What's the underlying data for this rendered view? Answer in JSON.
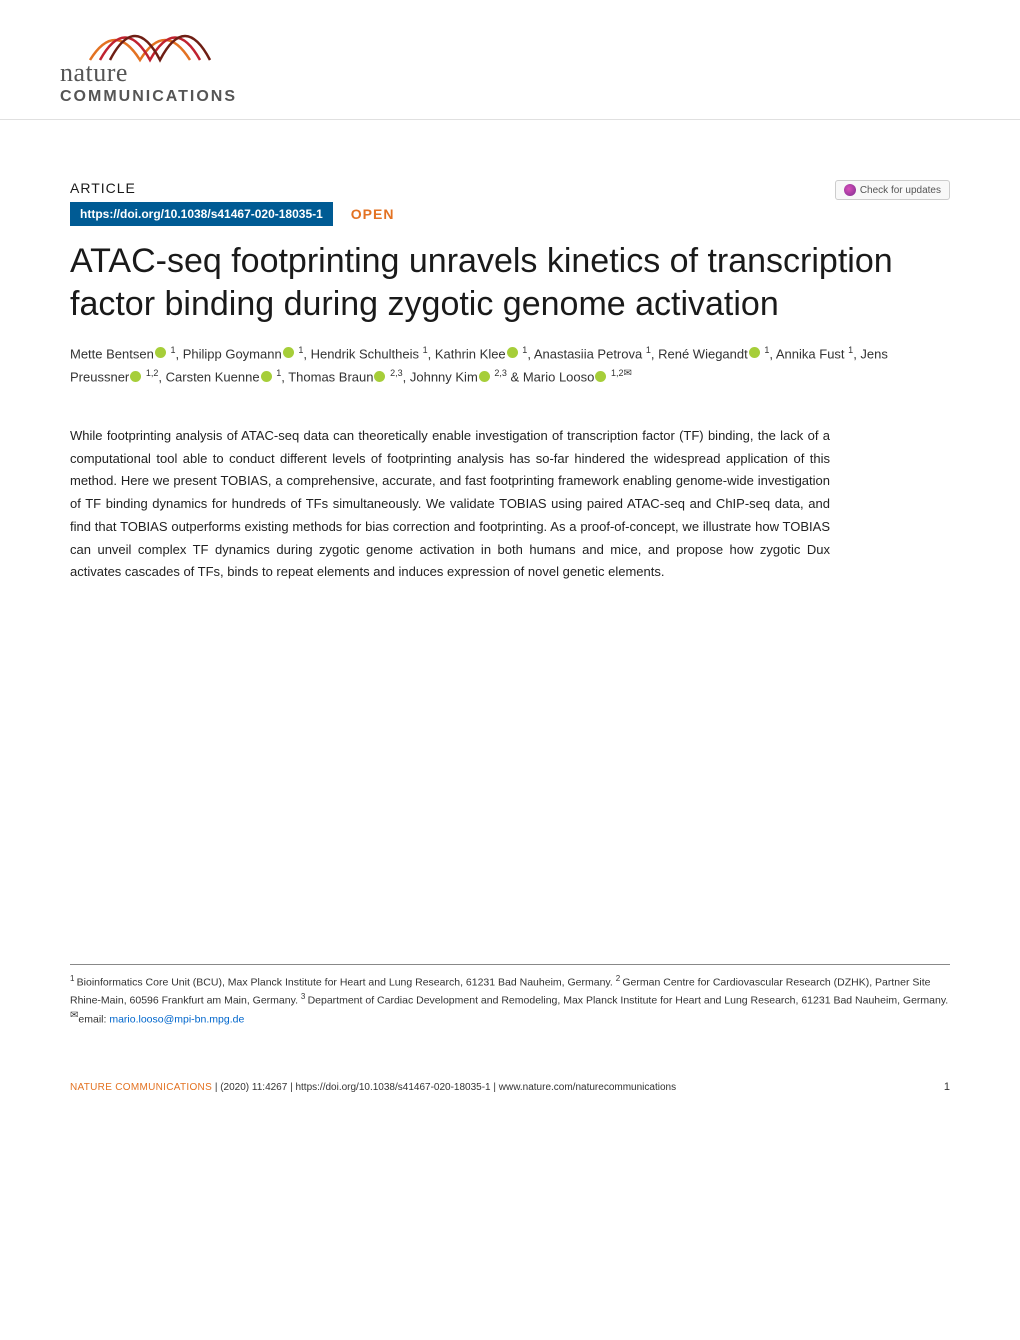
{
  "journal": {
    "top": "nature",
    "bottom": "COMMUNICATIONS"
  },
  "header": {
    "article_type": "ARTICLE",
    "doi_text": "https://doi.org/10.1038/s41467-020-18035-1",
    "open_label": "OPEN",
    "check_updates": "Check for updates"
  },
  "title": "ATAC-seq footprinting unravels kinetics of transcription factor binding during zygotic genome activation",
  "authors": [
    {
      "name": "Mette Bentsen",
      "orcid": true,
      "sup": "1"
    },
    {
      "name": "Philipp Goymann",
      "orcid": true,
      "sup": "1"
    },
    {
      "name": "Hendrik Schultheis",
      "orcid": false,
      "sup": "1"
    },
    {
      "name": "Kathrin Klee",
      "orcid": true,
      "sup": "1"
    },
    {
      "name": "Anastasiia Petrova",
      "orcid": false,
      "sup": "1"
    },
    {
      "name": "René Wiegandt",
      "orcid": true,
      "sup": "1"
    },
    {
      "name": "Annika Fust",
      "orcid": false,
      "sup": "1"
    },
    {
      "name": "Jens Preussner",
      "orcid": true,
      "sup": "1,2"
    },
    {
      "name": "Carsten Kuenne",
      "orcid": true,
      "sup": "1"
    },
    {
      "name": "Thomas Braun",
      "orcid": true,
      "sup": "2,3"
    },
    {
      "name": "Johnny Kim",
      "orcid": true,
      "sup": "2,3"
    },
    {
      "name": "Mario Looso",
      "orcid": true,
      "sup": "1,2",
      "corresponding": true,
      "last_sep": "&"
    }
  ],
  "abstract": "While footprinting analysis of ATAC-seq data can theoretically enable investigation of transcription factor (TF) binding, the lack of a computational tool able to conduct different levels of footprinting analysis has so-far hindered the widespread application of this method. Here we present TOBIAS, a comprehensive, accurate, and fast footprinting framework enabling genome-wide investigation of TF binding dynamics for hundreds of TFs simultaneously. We validate TOBIAS using paired ATAC-seq and ChIP-seq data, and find that TOBIAS outperforms existing methods for bias correction and footprinting. As a proof-of-concept, we illustrate how TOBIAS can unveil complex TF dynamics during zygotic genome activation in both humans and mice, and propose how zygotic Dux activates cascades of TFs, binds to repeat elements and induces expression of novel genetic elements.",
  "affiliations": {
    "text_before_email": "Bioinformatics Core Unit (BCU), Max Planck Institute for Heart and Lung Research, 61231 Bad Nauheim, Germany. ",
    "aff2": "German Centre for Cardiovascular Research (DZHK), Partner Site Rhine-Main, 60596 Frankfurt am Main, Germany. ",
    "aff3": "Department of Cardiac Development and Remodeling, Max Planck Institute for Heart and Lung Research, 61231 Bad Nauheim, Germany. ",
    "email_label": "email: ",
    "email": "mario.looso@mpi-bn.mpg.de"
  },
  "footer": {
    "left": "NATURE COMMUNICATIONS",
    "center": "(2020) 11:4267 | https://doi.org/10.1038/s41467-020-18035-1 | www.nature.com/naturecommunications",
    "page_num": "1"
  },
  "colors": {
    "doi_bg": "#005b94",
    "open_color": "#e37222",
    "orcid_color": "#a6ce39",
    "wave_c1": "#e37222",
    "wave_c2": "#c0222f",
    "wave_c3": "#6e1e14"
  }
}
